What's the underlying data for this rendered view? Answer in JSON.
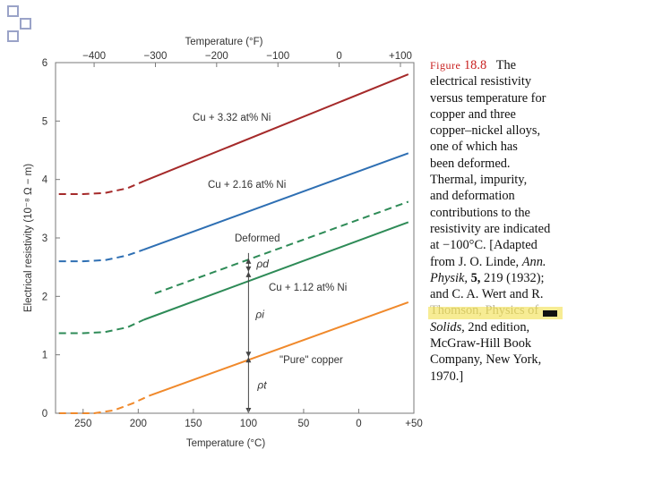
{
  "slide": {
    "bullets": [
      "bullet-square",
      "bullet-square",
      "bullet-square"
    ]
  },
  "chart_data": {
    "type": "line",
    "top_axis": {
      "label": "Temperature (°F)",
      "tick_labels": [
        "−400",
        "−300",
        "−200",
        "−100",
        "0",
        "+100"
      ],
      "tick_values_c": [
        -240,
        -184.4,
        -128.9,
        -73.3,
        -17.8,
        37.8
      ]
    },
    "x": {
      "label": "Temperature (°C)",
      "range": [
        -275,
        50
      ],
      "reversed_labels": true,
      "ticks": [
        -250,
        -200,
        -150,
        -100,
        -50,
        0,
        50
      ],
      "tick_labels": [
        "250",
        "200",
        "150",
        "100",
        "50",
        "0",
        "+50"
      ]
    },
    "y": {
      "label": "Electrical resistivity (10⁻⁸ Ω − m)",
      "range": [
        0,
        6
      ],
      "ticks": [
        0,
        1,
        2,
        3,
        4,
        5,
        6
      ],
      "tick_labels": [
        "0",
        "1",
        "2",
        "3",
        "4",
        "5",
        "6"
      ]
    },
    "series": [
      {
        "name": "Cu + 3.32 at% Ni",
        "color": "#a52a2a",
        "dashed": [
          [
            -272,
            3.75
          ],
          [
            -250,
            3.75
          ],
          [
            -230,
            3.77
          ],
          [
            -210,
            3.85
          ],
          [
            -195,
            3.97
          ]
        ],
        "solid": [
          [
            -195,
            3.97
          ],
          [
            45,
            5.8
          ]
        ]
      },
      {
        "name": "Cu + 2.16 at% Ni",
        "color": "#2e6fb3",
        "dashed": [
          [
            -272,
            2.6
          ],
          [
            -250,
            2.6
          ],
          [
            -230,
            2.62
          ],
          [
            -210,
            2.7
          ],
          [
            -195,
            2.8
          ]
        ],
        "solid": [
          [
            -195,
            2.8
          ],
          [
            45,
            4.45
          ]
        ]
      },
      {
        "name": "Deformed",
        "color": "#2e8b57",
        "dashed": [
          [
            -185,
            2.05
          ],
          [
            45,
            3.62
          ]
        ],
        "solid": []
      },
      {
        "name": "Cu + 1.12 at% Ni",
        "color": "#2e8b57",
        "dashed": [
          [
            -272,
            1.37
          ],
          [
            -250,
            1.37
          ],
          [
            -230,
            1.39
          ],
          [
            -210,
            1.47
          ],
          [
            -195,
            1.6
          ]
        ],
        "solid": [
          [
            -195,
            1.6
          ],
          [
            45,
            3.27
          ]
        ]
      },
      {
        "name": "\"Pure\" copper",
        "color": "#f0892b",
        "dashed": [
          [
            -272,
            0.0
          ],
          [
            -240,
            0.0
          ],
          [
            -222,
            0.05
          ],
          [
            -205,
            0.17
          ],
          [
            -190,
            0.3
          ]
        ],
        "solid": [
          [
            -190,
            0.3
          ],
          [
            45,
            1.9
          ]
        ]
      }
    ],
    "annotations": {
      "rho_t": "ρt",
      "rho_i": "ρi",
      "rho_d": "ρd",
      "temperature_c": -100,
      "levels": [
        0,
        0.96,
        2.42,
        2.65
      ]
    }
  },
  "caption": {
    "fig_label_word": "Figure",
    "fig_number": "18.8",
    "line1_rest": "The",
    "lines": [
      "electrical resistivity",
      "versus temperature for",
      "copper and three",
      "copper–nickel alloys,",
      "one of which has",
      "been deformed.",
      "Thermal, impurity,",
      "and deformation",
      "contributions to the",
      "resistivity are indicated",
      "at −100°C. [Adapted"
    ],
    "linde_prefix": "from J. O. Linde,",
    "linde_journal": "Ann.",
    "physik": "Physik,",
    "volume": "5,",
    "pages_year": "219 (1932);",
    "wert_line": "and C. A. Wert and R.",
    "obscured_text": "Thomson, Physics of",
    "solids_title": "Solids,",
    "edition": "2nd edition,",
    "publisher1": "McGraw-Hill Book",
    "publisher2": "Company, New York,",
    "year": "1970.]"
  },
  "colors": {
    "plot_border": "#7a7a7a",
    "axis_text": "#333333",
    "arrow": "#444444",
    "highlight": "#f1dd3c"
  }
}
